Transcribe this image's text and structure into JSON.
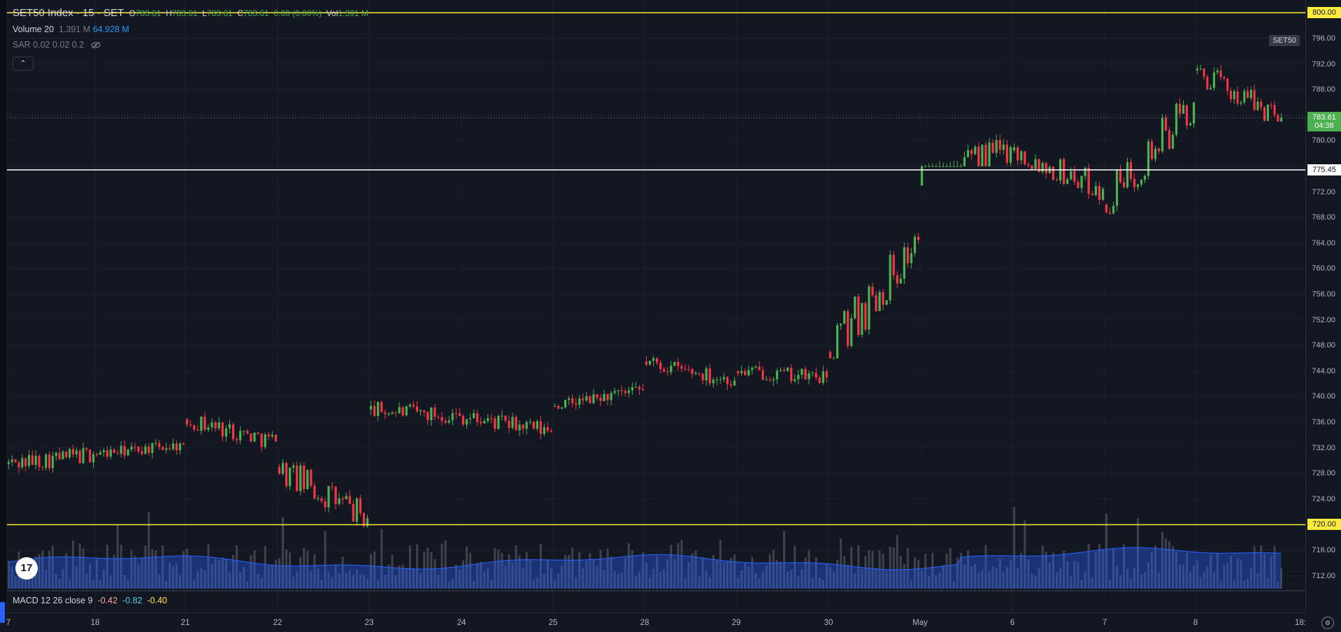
{
  "legend": {
    "symbol": "SET50 Index · 15 · SET",
    "o_label": "O",
    "o": "783.61",
    "h_label": "H",
    "h": "783.61",
    "l_label": "L",
    "l": "783.61",
    "c_label": "C",
    "c": "783.61",
    "change": "0.00 (0.00%)",
    "vol_label": "Vol",
    "vol": "1.391 M"
  },
  "volume_legend": {
    "name": "Volume 20",
    "value": "1.391 M",
    "ma": "64.928 M"
  },
  "sar_legend": {
    "text": "SAR 0.02 0.02 0.2"
  },
  "macd_legend": {
    "name": "MACD 12 26 close 9",
    "v1": "-0.42",
    "v2": "-0.82",
    "v3": "-0.40"
  },
  "collapse_button": "⌃",
  "symbol_tag": "SET50",
  "logo_text": "17",
  "settings_icon": "⚙",
  "colors": {
    "up": "#4caf50",
    "down": "#f23645",
    "yellow_line": "#ffeb3b",
    "white_line": "#ffffff",
    "volume_area": "#2962ff"
  },
  "price_axis": {
    "labels": [
      "796.00",
      "792.00",
      "788.00",
      "780.00",
      "772.00",
      "768.00",
      "764.00",
      "760.00",
      "756.00",
      "752.00",
      "748.00",
      "744.00",
      "740.00",
      "736.00",
      "732.00",
      "728.00",
      "724.00",
      "716.00",
      "712.00"
    ],
    "marker_800": "800.00",
    "marker_775": "775.45",
    "marker_720": "720.00",
    "last_price": "783.61",
    "countdown": "04:38"
  },
  "time_axis": {
    "labels": [
      "7",
      "18",
      "21",
      "22",
      "23",
      "24",
      "25",
      "28",
      "29",
      "30",
      "May",
      "6",
      "7",
      "8",
      "18:"
    ]
  },
  "chart_data": {
    "type": "candlestick",
    "yrange": [
      710,
      802
    ],
    "horizontal_lines": [
      800.0,
      775.45,
      720.0
    ],
    "last_price": 783.61,
    "days": [
      {
        "label": "17",
        "open": 729.5,
        "close": 731.0,
        "high": 734.0,
        "low": 726.0
      },
      {
        "label": "18",
        "open": 731.0,
        "close": 732.5,
        "high": 734.5,
        "low": 729.5
      },
      {
        "label": "21",
        "open": 736.5,
        "close": 733.0,
        "high": 738.0,
        "low": 730.0
      },
      {
        "label": "22",
        "open": 729.0,
        "close": 721.0,
        "high": 734.0,
        "low": 719.5
      },
      {
        "label": "23",
        "open": 738.0,
        "close": 737.0,
        "high": 742.5,
        "low": 735.0
      },
      {
        "label": "24",
        "open": 737.0,
        "close": 734.5,
        "high": 738.0,
        "low": 730.0
      },
      {
        "label": "25",
        "open": 738.5,
        "close": 741.0,
        "high": 743.0,
        "low": 738.0
      },
      {
        "label": "28",
        "open": 745.5,
        "close": 742.5,
        "high": 748.0,
        "low": 741.0
      },
      {
        "label": "29",
        "open": 744.0,
        "close": 743.0,
        "high": 747.0,
        "low": 740.5
      },
      {
        "label": "30",
        "open": 747.0,
        "close": 764.5,
        "high": 768.5,
        "low": 746.0
      },
      {
        "label": "May",
        "open": 773.0,
        "close": 779.0,
        "high": 790.5,
        "low": 776.0
      },
      {
        "label": "6",
        "open": 778.5,
        "close": 772.5,
        "high": 782.0,
        "low": 770.0
      },
      {
        "label": "7",
        "open": 770.0,
        "close": 786.0,
        "high": 787.0,
        "low": 768.5
      },
      {
        "label": "8",
        "open": 791.0,
        "close": 783.6,
        "high": 794.5,
        "low": 783.0
      }
    ]
  }
}
